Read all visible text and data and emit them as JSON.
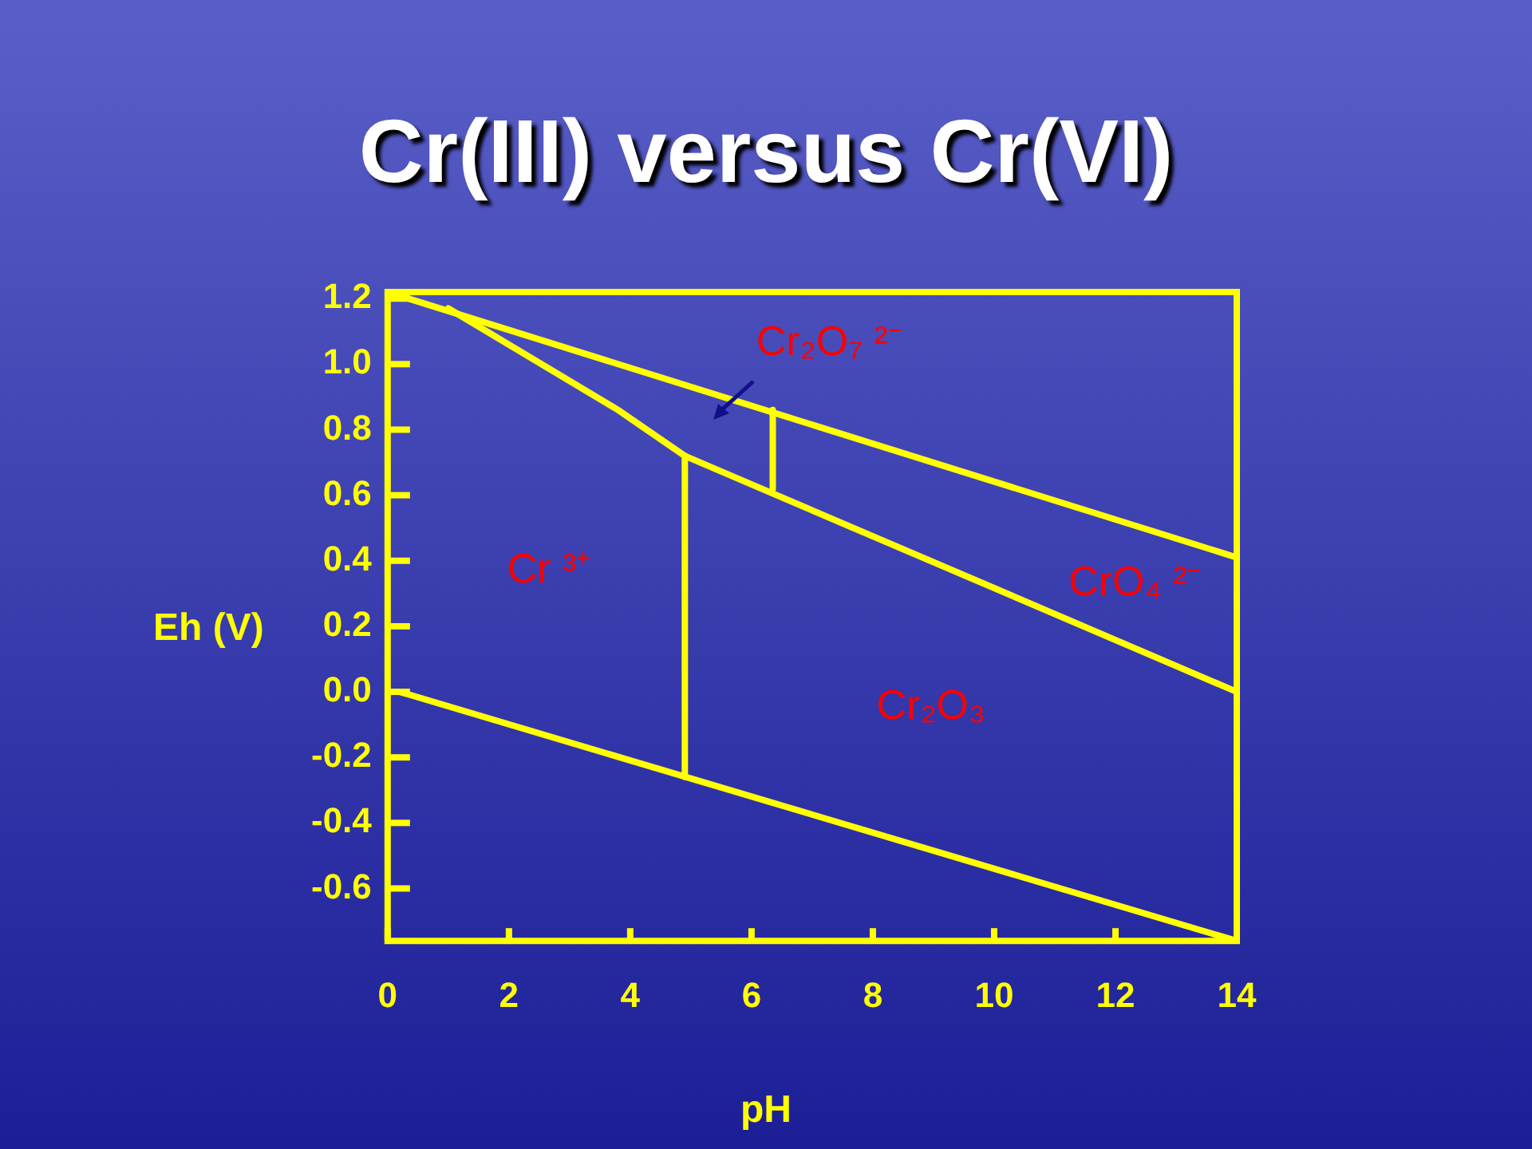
{
  "chart_data": {
    "type": "line",
    "title": "Cr(III) versus Cr(VI)",
    "xlabel": "pH",
    "ylabel": "Eh (V)",
    "xlim": [
      0,
      14
    ],
    "xticks": [
      0,
      2,
      4,
      6,
      8,
      10,
      12,
      14
    ],
    "ylim": [
      -0.76,
      1.22
    ],
    "yticks": [
      1.2,
      {
        "value": 1.0,
        "label": "1.0"
      },
      0.8,
      0.6,
      0.4,
      0.2,
      {
        "value": 0,
        "label": "0.0"
      },
      -0.2,
      -0.4,
      -0.6
    ],
    "grid": false,
    "legend": false,
    "marker": "none",
    "line_style": "solid",
    "series": [
      {
        "color": "#ffff00",
        "x": [
          0,
          14
        ],
        "values": [
          1.22,
          0.41
        ]
      },
      {
        "color": "#ffff00",
        "x": [
          1.0,
          3.8,
          4.9,
          14
        ],
        "values": [
          1.17,
          0.86,
          0.72,
          0.0
        ]
      },
      {
        "color": "#ffff00",
        "x": [
          4.9,
          4.9
        ],
        "values": [
          0.72,
          -0.26
        ]
      },
      {
        "color": "#ffff00",
        "x": [
          6.35,
          6.35
        ],
        "values": [
          0.86,
          0.62
        ]
      },
      {
        "color": "#ffff00",
        "x": [
          0.2,
          14
        ],
        "values": [
          0.0,
          -0.76
        ]
      }
    ],
    "annotations": [
      "Cr₂O₇ ²⁻",
      "Cr ³⁺",
      "CrO₄ ²⁻",
      "Cr₂O₃"
    ]
  }
}
